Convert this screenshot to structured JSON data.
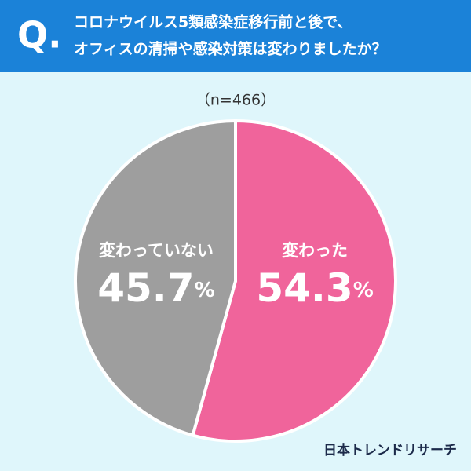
{
  "chart_data": {
    "type": "pie",
    "question_marker": "Q.",
    "title": [
      "コロナウイルス5類感染症移行前と後で、",
      "オフィスの清掃や感染対策は変わりましたか？"
    ],
    "subtitle": "（n=466）",
    "categories": [
      "変わった",
      "変わっていない"
    ],
    "values": [
      54.3,
      45.7
    ],
    "value_labels": [
      "54.3%",
      "45.7%"
    ],
    "colors": [
      "#f0649b",
      "#9e9e9e"
    ],
    "source": "日本トレンドリサーチ"
  }
}
